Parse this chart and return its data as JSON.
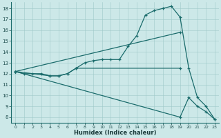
{
  "xlabel": "Humidex (Indice chaleur)",
  "background_color": "#cce8e8",
  "line_color": "#1a6b6b",
  "xlim": [
    -0.5,
    23.5
  ],
  "ylim": [
    7.5,
    18.6
  ],
  "xticks": [
    0,
    1,
    2,
    3,
    4,
    5,
    6,
    7,
    8,
    9,
    10,
    11,
    12,
    13,
    14,
    15,
    16,
    17,
    18,
    19,
    20,
    21,
    22,
    23
  ],
  "yticks": [
    8,
    9,
    10,
    11,
    12,
    13,
    14,
    15,
    16,
    17,
    18
  ],
  "line1_x": [
    0,
    1,
    2,
    3,
    4,
    5,
    6,
    7,
    8,
    9,
    10,
    11,
    12,
    13,
    14,
    15,
    16,
    17,
    18,
    19,
    20,
    21,
    22,
    23
  ],
  "line1_y": [
    12.2,
    12.0,
    12.0,
    12.0,
    11.8,
    11.8,
    12.0,
    12.5,
    13.0,
    13.2,
    13.3,
    13.3,
    13.3,
    14.5,
    15.5,
    17.4,
    17.8,
    18.0,
    18.2,
    17.2,
    12.5,
    9.8,
    9.0,
    7.8
  ],
  "line2_x": [
    0,
    4,
    5,
    6,
    7,
    19
  ],
  "line2_y": [
    12.2,
    11.8,
    11.8,
    12.0,
    12.5,
    12.5
  ],
  "line3_x": [
    0,
    19
  ],
  "line3_y": [
    12.2,
    15.8
  ],
  "line4_x": [
    0,
    19,
    20,
    21,
    22,
    23
  ],
  "line4_y": [
    12.2,
    8.0,
    9.8,
    9.0,
    8.5,
    7.8
  ]
}
